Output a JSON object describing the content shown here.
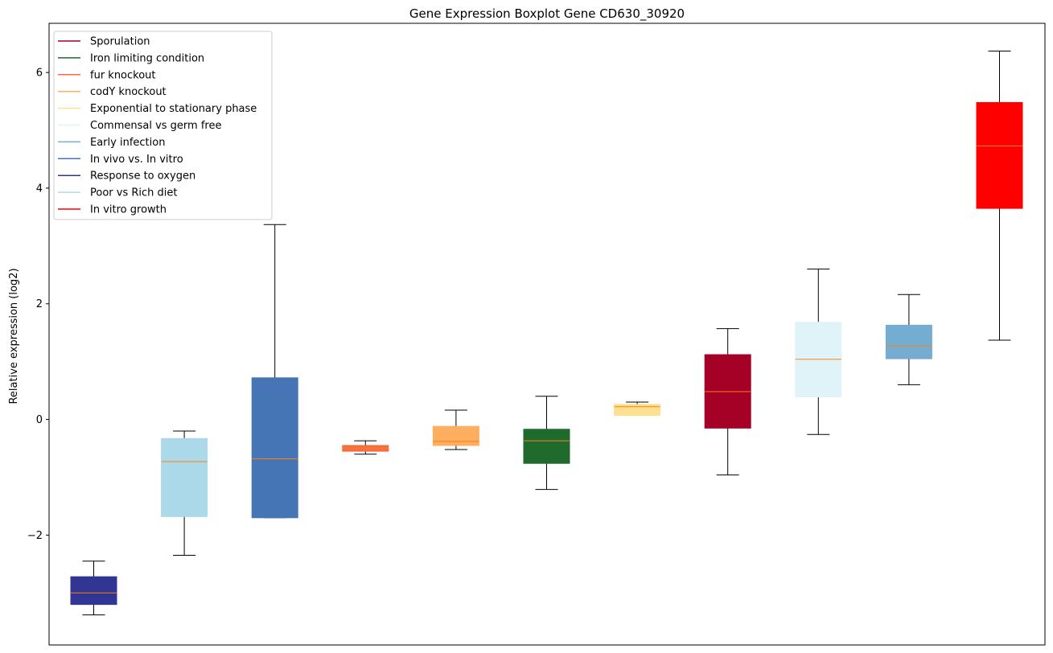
{
  "chart_data": {
    "type": "boxplot",
    "title": "Gene Expression Boxplot Gene CD630_30920",
    "xlabel": "",
    "ylabel": "Relative expression (log2)",
    "ylim": [
      -3.9,
      6.85
    ],
    "yticks": [
      -2,
      0,
      2,
      4,
      6
    ],
    "ytick_labels": [
      "−2",
      "0",
      "2",
      "4",
      "6"
    ],
    "median_color": "#ff7f0e",
    "whisker_color": "#000000",
    "legend": {
      "location": "upper-left",
      "entries": [
        {
          "label": "Sporulation",
          "color": "#a50026"
        },
        {
          "label": "Iron limiting condition",
          "color": "#1f6b2e"
        },
        {
          "label": "fur knockout",
          "color": "#f46d43"
        },
        {
          "label": "codY knockout",
          "color": "#fdae61"
        },
        {
          "label": "Exponential to stationary phase",
          "color": "#fee090"
        },
        {
          "label": "Commensal vs germ free",
          "color": "#e0f3f8"
        },
        {
          "label": "Early infection",
          "color": "#74add1"
        },
        {
          "label": "In vivo vs. In vitro",
          "color": "#4575b4"
        },
        {
          "label": "Response to oxygen",
          "color": "#313695"
        },
        {
          "label": "Poor vs Rich diet",
          "color": "#abd9e9"
        },
        {
          "label": "In vitro growth",
          "color": "#ff0000"
        }
      ]
    },
    "boxes": [
      {
        "group": "Response to oxygen",
        "color": "#313695",
        "whisker_low": -3.38,
        "q1": -3.2,
        "median": -3.0,
        "q3": -2.72,
        "whisker_high": -2.45
      },
      {
        "group": "Poor vs Rich diet",
        "color": "#abd9e9",
        "whisker_low": -2.35,
        "q1": -1.68,
        "median": -0.73,
        "q3": -0.33,
        "whisker_high": -0.2
      },
      {
        "group": "In vivo vs. In vitro",
        "color": "#4575b4",
        "whisker_low": -1.7,
        "q1": -1.7,
        "median": -0.68,
        "q3": 0.72,
        "whisker_high": 3.37
      },
      {
        "group": "fur knockout",
        "color": "#f46d43",
        "whisker_low": -0.6,
        "q1": -0.55,
        "median": -0.5,
        "q3": -0.45,
        "whisker_high": -0.37
      },
      {
        "group": "codY knockout",
        "color": "#fdae61",
        "whisker_low": -0.52,
        "q1": -0.45,
        "median": -0.38,
        "q3": -0.12,
        "whisker_high": 0.16
      },
      {
        "group": "Iron limiting condition",
        "color": "#1f6b2e",
        "whisker_low": -1.21,
        "q1": -0.76,
        "median": -0.37,
        "q3": -0.17,
        "whisker_high": 0.4
      },
      {
        "group": "Exponential to stationary phase",
        "color": "#fee090",
        "whisker_low": 0.07,
        "q1": 0.07,
        "median": 0.22,
        "q3": 0.26,
        "whisker_high": 0.3
      },
      {
        "group": "Sporulation",
        "color": "#a50026",
        "whisker_low": -0.96,
        "q1": -0.15,
        "median": 0.48,
        "q3": 1.12,
        "whisker_high": 1.57
      },
      {
        "group": "Commensal vs germ free",
        "color": "#e0f3f8",
        "whisker_low": -0.26,
        "q1": 0.39,
        "median": 1.04,
        "q3": 1.68,
        "whisker_high": 2.6
      },
      {
        "group": "Early infection",
        "color": "#74add1",
        "whisker_low": 0.6,
        "q1": 1.05,
        "median": 1.27,
        "q3": 1.63,
        "whisker_high": 2.16
      },
      {
        "group": "In vitro growth",
        "color": "#ff0000",
        "whisker_low": 1.37,
        "q1": 3.65,
        "median": 4.73,
        "q3": 5.48,
        "whisker_high": 6.37
      }
    ]
  }
}
